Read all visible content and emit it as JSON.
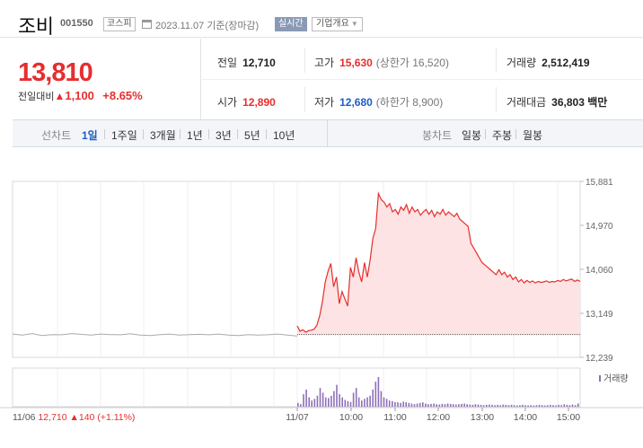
{
  "header": {
    "name": "조비",
    "code": "001550",
    "market": "코스피",
    "date": "2023.11.07 기준(장마감)",
    "realtime_label": "실시간",
    "company_label": "기업개요"
  },
  "quote": {
    "price": "13,810",
    "change_label": "전일대비",
    "change_value": "1,100",
    "change_pct": "+8.65%",
    "prev_close_label": "전일",
    "prev_close": "12,710",
    "open_label": "시가",
    "open": "12,890",
    "high_label": "고가",
    "high": "15,630",
    "upper_limit": "(상한가 16,520)",
    "low_label": "저가",
    "low": "12,680",
    "lower_limit": "(하한가 8,900)",
    "volume_label": "거래량",
    "volume": "2,512,419",
    "amount_label": "거래대금",
    "amount": "36,803 백만"
  },
  "chart_tabs": {
    "line_label": "선차트",
    "line_periods": [
      "1일",
      "1주일",
      "3개월",
      "1년",
      "3년",
      "5년",
      "10년"
    ],
    "candle_label": "봉차트",
    "candle_periods": [
      "일봉",
      "주봉",
      "월봉"
    ],
    "active": "1일"
  },
  "colors": {
    "up": "#e62e2e",
    "down": "#1c5dc4",
    "area": "#fde3e3",
    "volume": "#8e6fb8",
    "prev_day": "#aaaaaa"
  },
  "chart_data": {
    "type": "line",
    "y_ticks": [
      "15,881",
      "14,970",
      "14,060",
      "13,149",
      "12,239"
    ],
    "ylim": [
      12239,
      15881
    ],
    "prev_close": 12710,
    "x_labels": [
      "11/07",
      "10:00",
      "11:00",
      "12:00",
      "13:00",
      "14:00",
      "15:00"
    ],
    "volume_legend": "거래량",
    "prev_day_caption": {
      "date": "11/06",
      "price": "12,710",
      "change": "140",
      "pct": "(+1.11%)"
    },
    "prev_day_series": [
      12720,
      12700,
      12730,
      12690,
      12710,
      12705,
      12730,
      12715,
      12700,
      12720,
      12710,
      12705,
      12725,
      12700,
      12690,
      12710,
      12720,
      12700,
      12710,
      12715,
      12705,
      12720,
      12700,
      12690,
      12710,
      12700,
      12705,
      12720,
      12700,
      12680
    ],
    "today_series": [
      12890,
      12780,
      12810,
      12760,
      12790,
      12800,
      12820,
      12900,
      13100,
      13400,
      13800,
      14020,
      14180,
      13700,
      13900,
      13350,
      13600,
      13450,
      13300,
      14100,
      13900,
      14300,
      14000,
      13800,
      14200,
      13900,
      14250,
      14700,
      14900,
      15630,
      15500,
      15450,
      15350,
      15420,
      15250,
      15300,
      15200,
      15350,
      15280,
      15400,
      15220,
      15350,
      15250,
      15300,
      15180,
      15250,
      15300,
      15200,
      15280,
      15150,
      15250,
      15200,
      15300,
      15180,
      15250,
      15200,
      15150,
      15220,
      15100,
      15050,
      15000,
      14950,
      14600,
      14500,
      14400,
      14300,
      14200,
      14150,
      14100,
      14050,
      14000,
      13950,
      14050,
      13950,
      14000,
      13900,
      13950,
      13850,
      13900,
      13800,
      13850,
      13780,
      13830,
      13790,
      13820,
      13780,
      13810,
      13790,
      13800,
      13820,
      13790,
      13810,
      13800,
      13830,
      13810,
      13850,
      13820,
      13840,
      13860,
      13810,
      13840,
      13810
    ],
    "today_volume": [
      12,
      8,
      40,
      55,
      30,
      20,
      25,
      35,
      60,
      45,
      30,
      28,
      35,
      50,
      70,
      40,
      30,
      22,
      18,
      15,
      45,
      60,
      30,
      20,
      25,
      30,
      35,
      55,
      80,
      95,
      50,
      30,
      25,
      20,
      18,
      15,
      14,
      12,
      16,
      14,
      12,
      10,
      8,
      10,
      12,
      14,
      10,
      8,
      9,
      10,
      8,
      7,
      9,
      8,
      10,
      9,
      8,
      7,
      8,
      9,
      10,
      8,
      7,
      6,
      8,
      7,
      6,
      5,
      6,
      7,
      6,
      5,
      6,
      5,
      7,
      6,
      5,
      6,
      5,
      4,
      5,
      6,
      5,
      4,
      5,
      4,
      5,
      6,
      5,
      4,
      5,
      6,
      5,
      4,
      6,
      5,
      8,
      6,
      5,
      7,
      5,
      10
    ]
  }
}
